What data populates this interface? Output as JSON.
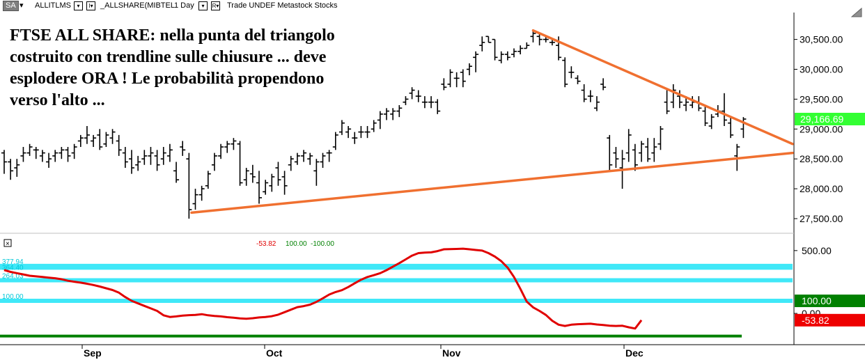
{
  "toolbar": {
    "symbol_button": "SA",
    "symbol": "ALLITLMS",
    "series": "_ALLSHARE(MIBTEL",
    "interval": "1 Day",
    "source": "Trade  UNDEF  Metastock  Stocks",
    "box1": "▾",
    "box2": "I▾",
    "box3": "▾",
    "box4": "R▾"
  },
  "headline": "FTSE ALL SHARE: nella punta del triangolo costruito con trendline sulle chiusure ... deve esplodere ORA ! Le probabilità propendono verso l'alto ...",
  "colors": {
    "bars": "#000000",
    "trendline": "#f07030",
    "oscillator": "#e00000",
    "bands": "#40e8f8",
    "last_price_bg": "#33ff33",
    "level_100_bg": "#008000",
    "neg_bg": "#ee0000",
    "baseline": "#008000"
  },
  "chart_data": [
    {
      "type": "ohlc",
      "x_labels": [
        "Sep",
        "Oct",
        "Nov",
        "Dec"
      ],
      "y_ticks": [
        "30,500.00",
        "30,000.00",
        "29,500.00",
        "29,000.00",
        "28,500.00",
        "28,000.00",
        "27,500.00"
      ],
      "y_tick_values": [
        30500,
        30000,
        29500,
        29000,
        28500,
        28000,
        27500
      ],
      "ylim": [
        27290,
        30950
      ],
      "last_price": 29166.69,
      "last_price_label": "29,166.69",
      "bars": [
        [
          28600,
          28650,
          28250,
          28450
        ],
        [
          28450,
          28500,
          28150,
          28300
        ],
        [
          28350,
          28500,
          28200,
          28400
        ],
        [
          28550,
          28700,
          28450,
          28600
        ],
        [
          28600,
          28750,
          28550,
          28700
        ],
        [
          28650,
          28700,
          28500,
          28650
        ],
        [
          28550,
          28650,
          28450,
          28600
        ],
        [
          28450,
          28600,
          28350,
          28500
        ],
        [
          28550,
          28650,
          28450,
          28600
        ],
        [
          28600,
          28700,
          28500,
          28650
        ],
        [
          28650,
          28700,
          28450,
          28550
        ],
        [
          28600,
          28750,
          28500,
          28700
        ],
        [
          28800,
          28900,
          28700,
          28850
        ],
        [
          28850,
          29050,
          28750,
          28900
        ],
        [
          28800,
          28900,
          28700,
          28850
        ],
        [
          28900,
          29000,
          28650,
          28700
        ],
        [
          28750,
          28950,
          28700,
          28900
        ],
        [
          28850,
          29000,
          28750,
          28950
        ],
        [
          28800,
          28900,
          28550,
          28650
        ],
        [
          28600,
          28700,
          28350,
          28450
        ],
        [
          28500,
          28650,
          28250,
          28350
        ],
        [
          28400,
          28550,
          28300,
          28450
        ],
        [
          28500,
          28650,
          28400,
          28550
        ],
        [
          28550,
          28700,
          28400,
          28600
        ],
        [
          28550,
          28650,
          28300,
          28400
        ],
        [
          28500,
          28700,
          28400,
          28600
        ],
        [
          28550,
          28750,
          28450,
          28650
        ],
        [
          28300,
          28450,
          28100,
          28150
        ],
        [
          28700,
          28800,
          28550,
          28650
        ],
        [
          28500,
          28600,
          27500,
          27650
        ],
        [
          27750,
          28000,
          27650,
          27900
        ],
        [
          27900,
          28050,
          27800,
          28000
        ],
        [
          28050,
          28300,
          28000,
          28250
        ],
        [
          28400,
          28600,
          28300,
          28550
        ],
        [
          28550,
          28750,
          28500,
          28700
        ],
        [
          28700,
          28800,
          28600,
          28750
        ],
        [
          28750,
          28850,
          28650,
          28800
        ],
        [
          28750,
          28800,
          28050,
          28100
        ],
        [
          28150,
          28350,
          28050,
          28300
        ],
        [
          28250,
          28400,
          28100,
          28200
        ],
        [
          28100,
          28300,
          27750,
          27850
        ],
        [
          27950,
          28150,
          27900,
          28100
        ],
        [
          28050,
          28250,
          27950,
          28200
        ],
        [
          28350,
          28450,
          28050,
          28150
        ],
        [
          28200,
          28300,
          27900,
          28050
        ],
        [
          28400,
          28550,
          28300,
          28500
        ],
        [
          28450,
          28600,
          28400,
          28550
        ],
        [
          28550,
          28650,
          28450,
          28600
        ],
        [
          28500,
          28600,
          28400,
          28550
        ],
        [
          28300,
          28500,
          28050,
          28450
        ],
        [
          28450,
          28600,
          28350,
          28550
        ],
        [
          28600,
          28650,
          28450,
          28600
        ],
        [
          28700,
          28950,
          28650,
          28900
        ],
        [
          28950,
          29150,
          28900,
          29100
        ],
        [
          28950,
          29050,
          28850,
          29000
        ],
        [
          28850,
          28950,
          28750,
          28850
        ],
        [
          28950,
          29050,
          28850,
          28950
        ],
        [
          28950,
          29050,
          28850,
          28950
        ],
        [
          29000,
          29150,
          28950,
          29100
        ],
        [
          29150,
          29300,
          29000,
          29250
        ],
        [
          29250,
          29350,
          29150,
          29300
        ],
        [
          29250,
          29350,
          29150,
          29300
        ],
        [
          29300,
          29400,
          29200,
          29350
        ],
        [
          29450,
          29550,
          29400,
          29500
        ],
        [
          29600,
          29700,
          29500,
          29650
        ],
        [
          29550,
          29650,
          29450,
          29550
        ],
        [
          29450,
          29550,
          29350,
          29450
        ],
        [
          29450,
          29550,
          29350,
          29450
        ],
        [
          29450,
          29500,
          29250,
          29300
        ],
        [
          29750,
          29850,
          29650,
          29700
        ],
        [
          29750,
          30000,
          29700,
          29950
        ],
        [
          29850,
          29950,
          29700,
          29850
        ],
        [
          29950,
          30000,
          29700,
          29800
        ],
        [
          30000,
          30100,
          29900,
          30050
        ],
        [
          30200,
          30300,
          29950,
          30250
        ],
        [
          30400,
          30550,
          30300,
          30450
        ],
        [
          30550,
          30550,
          30450,
          30450
        ],
        [
          30500,
          30500,
          30150,
          30200
        ],
        [
          30150,
          30300,
          30100,
          30250
        ],
        [
          30250,
          30300,
          30150,
          30200
        ],
        [
          30250,
          30350,
          30200,
          30300
        ],
        [
          30300,
          30400,
          30250,
          30350
        ],
        [
          30350,
          30450,
          30350,
          30400
        ],
        [
          30550,
          30650,
          30450,
          30600
        ],
        [
          30550,
          30600,
          30400,
          30500
        ],
        [
          30500,
          30550,
          30450,
          30500
        ],
        [
          30450,
          30500,
          30400,
          30450
        ],
        [
          30400,
          30550,
          30150,
          30200
        ],
        [
          30150,
          30200,
          29700,
          29750
        ],
        [
          29950,
          30050,
          29850,
          29950
        ],
        [
          29850,
          29900,
          29750,
          29800
        ],
        [
          29650,
          29750,
          29450,
          29500
        ],
        [
          29550,
          29650,
          29450,
          29550
        ],
        [
          29350,
          29550,
          29300,
          29450
        ],
        [
          29750,
          29850,
          29650,
          29700
        ],
        [
          28850,
          28900,
          28300,
          28400
        ],
        [
          28600,
          28700,
          28350,
          28500
        ],
        [
          28350,
          28650,
          28000,
          28500
        ],
        [
          28600,
          29000,
          28450,
          28900
        ],
        [
          28650,
          28750,
          28300,
          28400
        ],
        [
          28600,
          28800,
          28450,
          28750
        ],
        [
          28700,
          28850,
          28450,
          28500
        ],
        [
          28600,
          28850,
          28450,
          28700
        ],
        [
          28750,
          29050,
          28650,
          29000
        ],
        [
          29450,
          29650,
          29250,
          29300
        ],
        [
          29450,
          29750,
          29350,
          29650
        ],
        [
          29550,
          29650,
          29350,
          29450
        ],
        [
          29400,
          29550,
          29300,
          29450
        ],
        [
          29400,
          29550,
          29350,
          29450
        ],
        [
          29450,
          29550,
          29300,
          29350
        ],
        [
          29300,
          29400,
          29050,
          29100
        ],
        [
          29050,
          29250,
          29000,
          29200
        ],
        [
          29250,
          29400,
          29200,
          29300
        ],
        [
          29300,
          29600,
          29050,
          29150
        ],
        [
          29100,
          29200,
          28850,
          28900
        ],
        [
          28550,
          28750,
          28300,
          28700
        ],
        [
          29000,
          29200,
          28850,
          29166.69
        ]
      ],
      "trendline_upper": {
        "from": [
          59,
          30650
        ],
        "to": [
          100,
          28750
        ]
      },
      "trendline_lower": {
        "from": [
          0,
          27600
        ],
        "to": [
          100,
          28600
        ]
      }
    },
    {
      "type": "line",
      "legend_values": [
        "-53.82",
        "100.00",
        "-100.00"
      ],
      "legend_colors": [
        "#e00000",
        "#008000",
        "#008000"
      ],
      "y_ticks": [
        "500.00",
        "0.00"
      ],
      "y_tick_values": [
        500,
        0
      ],
      "ylim": [
        -210,
        610
      ],
      "levels": [
        {
          "value": 377.94,
          "label": "377.94"
        },
        {
          "value": 364.4,
          "label": "364.40"
        },
        {
          "value": 264.03,
          "label": "264.03"
        },
        {
          "value": 100.0,
          "label": "100.00"
        }
      ],
      "tags": [
        {
          "value": 100.0,
          "label": "100.00"
        },
        {
          "value": -53.82,
          "label": "-53.82"
        }
      ],
      "baseline": -180,
      "values": [
        345,
        330,
        320,
        310,
        300,
        295,
        290,
        285,
        280,
        272,
        260,
        252,
        245,
        236,
        226,
        214,
        200,
        186,
        165,
        130,
        100,
        80,
        60,
        40,
        20,
        -15,
        -28,
        -24,
        -18,
        -14,
        -12,
        -6,
        -15,
        -20,
        -24,
        -30,
        -34,
        -40,
        -42,
        -38,
        -32,
        -28,
        -22,
        -10,
        10,
        30,
        50,
        58,
        70,
        92,
        120,
        150,
        170,
        185,
        210,
        240,
        268,
        290,
        304,
        320,
        344,
        372,
        400,
        430,
        460,
        480,
        484,
        486,
        496,
        510,
        512,
        513,
        515,
        510,
        505,
        500,
        480,
        452,
        416,
        364,
        290,
        196,
        94,
        48,
        20,
        -12,
        -58,
        -90,
        -100,
        -90,
        -86,
        -84,
        -82,
        -88,
        -92,
        -98,
        -100,
        -98,
        -110,
        -120,
        -54
      ]
    }
  ]
}
